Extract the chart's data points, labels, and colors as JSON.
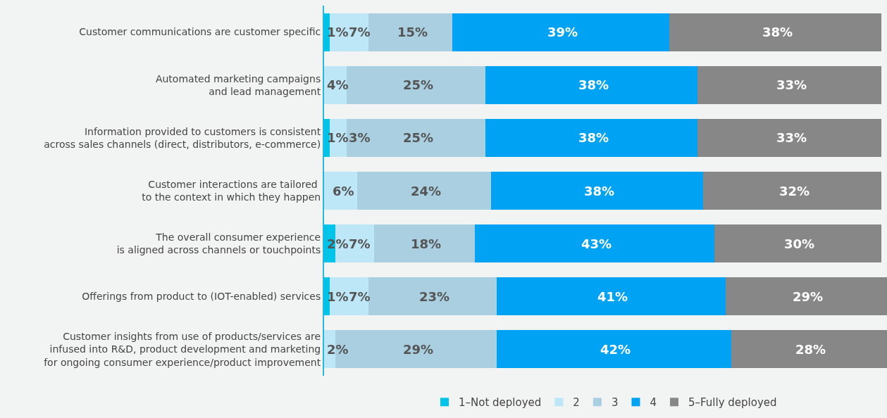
{
  "chart_data": {
    "type": "bar",
    "orientation": "horizontal",
    "stacked": true,
    "categories": [
      "Customer communications are customer specific",
      "Automated marketing campaigns\nand lead management",
      "Information provided to customers is consistent\nacross sales channels (direct, distributors, e-commerce)",
      "Customer interactions are tailored \nto the context in which they happen",
      "The overall consumer experience\nis aligned across channels or touchpoints",
      "Offerings from product to (IOT-enabled) services",
      "Customer insights from use of products/services are\ninfused into R&D, product development and marketing\nfor ongoing consumer experience/product improvement"
    ],
    "series": [
      {
        "name": "1–Not deployed",
        "color": "#00c3ea",
        "values": [
          1,
          null,
          1,
          null,
          2,
          1,
          null
        ],
        "value_labels": [
          "1%",
          null,
          "1%",
          null,
          "2%",
          "1%",
          null
        ]
      },
      {
        "name": "2",
        "color": "#bde6f6",
        "values": [
          7,
          4,
          3,
          6,
          7,
          7,
          2
        ],
        "value_labels": [
          "7%",
          "4%",
          "3%",
          "6%",
          "7%",
          "7%",
          "2%"
        ]
      },
      {
        "name": "3",
        "color": "#a9cfe0",
        "values": [
          15,
          25,
          25,
          24,
          18,
          23,
          29
        ],
        "value_labels": [
          "15%",
          "25%",
          "25%",
          "24%",
          "18%",
          "23%",
          "29%"
        ]
      },
      {
        "name": "4",
        "color": "#00a2f3",
        "values": [
          39,
          38,
          38,
          38,
          43,
          41,
          42
        ],
        "value_labels": [
          "39%",
          "38%",
          "38%",
          "38%",
          "43%",
          "41%",
          "42%"
        ]
      },
      {
        "name": "5–Fully deployed",
        "color": "#878787",
        "values": [
          38,
          33,
          33,
          32,
          30,
          29,
          28
        ],
        "value_labels": [
          "38%",
          "33%",
          "33%",
          "32%",
          "30%",
          "29%",
          "28%"
        ]
      }
    ],
    "xlim": [
      0,
      101
    ],
    "tick_labels": "y",
    "legend": "bottom"
  }
}
